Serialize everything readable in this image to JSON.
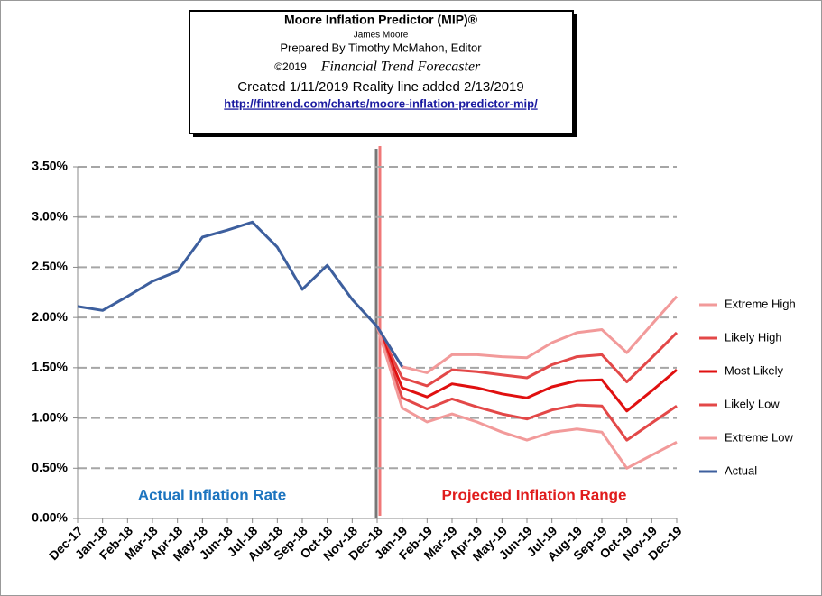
{
  "chart_data": {
    "type": "line",
    "title": "Moore Inflation Predictor (MIP)®",
    "author": "James Moore",
    "prepared_by": "Prepared  By Timothy McMahon, Editor",
    "copyright": "©2019",
    "publisher": "Financial Trend Forecaster",
    "created": "Created  1/11/2019 Reality line added 2/13/2019",
    "url": "http://fintrend.com/charts/moore-inflation-predictor-mip/",
    "annotations": [
      "Actual Inflation Rate",
      "Projected Inflation Range"
    ],
    "categories": [
      "Dec-17",
      "Jan-18",
      "Feb-18",
      "Mar-18",
      "Apr-18",
      "May-18",
      "Jun-18",
      "Jul-18",
      "Aug-18",
      "Sep-18",
      "Oct-18",
      "Nov-18",
      "Dec-18",
      "Jan-19",
      "Feb-19",
      "Mar-19",
      "Apr-19",
      "May-19",
      "Jun-19",
      "Jul-19",
      "Aug-19",
      "Sep-19",
      "Oct-19",
      "Nov-19",
      "Dec-19"
    ],
    "series": [
      {
        "name": "Extreme High",
        "color": "#f29a9a",
        "values": [
          null,
          null,
          null,
          null,
          null,
          null,
          null,
          null,
          null,
          null,
          null,
          null,
          1.91,
          1.51,
          1.45,
          1.63,
          1.63,
          1.61,
          1.6,
          1.75,
          1.85,
          1.88,
          1.65,
          1.93,
          2.21
        ]
      },
      {
        "name": "Likely High",
        "color": "#e34848",
        "values": [
          null,
          null,
          null,
          null,
          null,
          null,
          null,
          null,
          null,
          null,
          null,
          null,
          1.91,
          1.4,
          1.32,
          1.48,
          1.46,
          1.43,
          1.4,
          1.53,
          1.61,
          1.63,
          1.36,
          1.6,
          1.85
        ]
      },
      {
        "name": "Most Likely",
        "color": "#e01010",
        "values": [
          null,
          null,
          null,
          null,
          null,
          null,
          null,
          null,
          null,
          null,
          null,
          null,
          1.91,
          1.3,
          1.21,
          1.34,
          1.3,
          1.24,
          1.2,
          1.31,
          1.37,
          1.38,
          1.07,
          1.27,
          1.48
        ]
      },
      {
        "name": "Likely Low",
        "color": "#e34848",
        "values": [
          null,
          null,
          null,
          null,
          null,
          null,
          null,
          null,
          null,
          null,
          null,
          null,
          1.91,
          1.2,
          1.09,
          1.19,
          1.11,
          1.04,
          0.99,
          1.08,
          1.13,
          1.12,
          0.78,
          0.95,
          1.12
        ]
      },
      {
        "name": "Extreme Low",
        "color": "#f29a9a",
        "values": [
          null,
          null,
          null,
          null,
          null,
          null,
          null,
          null,
          null,
          null,
          null,
          null,
          1.91,
          1.1,
          0.96,
          1.04,
          0.96,
          0.86,
          0.78,
          0.86,
          0.89,
          0.86,
          0.5,
          0.63,
          0.76
        ]
      },
      {
        "name": "Actual",
        "color": "#3d5f9e",
        "values": [
          2.11,
          2.07,
          2.21,
          2.36,
          2.46,
          2.8,
          2.87,
          2.95,
          2.7,
          2.28,
          2.52,
          2.18,
          1.91,
          1.51,
          null,
          null,
          null,
          null,
          null,
          null,
          null,
          null,
          null,
          null,
          null
        ]
      }
    ],
    "ylim": [
      0,
      3.5
    ],
    "yticks": [
      {
        "value": 0,
        "label": "0.00%"
      },
      {
        "value": 0.5,
        "label": "0.50%"
      },
      {
        "value": 1,
        "label": "1.00%"
      },
      {
        "value": 1.5,
        "label": "1.50%"
      },
      {
        "value": 2,
        "label": "2.00%"
      },
      {
        "value": 2.5,
        "label": "2.50%"
      },
      {
        "value": 3,
        "label": "3.00%"
      },
      {
        "value": 3.5,
        "label": "3.50%"
      }
    ],
    "grid": true,
    "legend": "right"
  }
}
